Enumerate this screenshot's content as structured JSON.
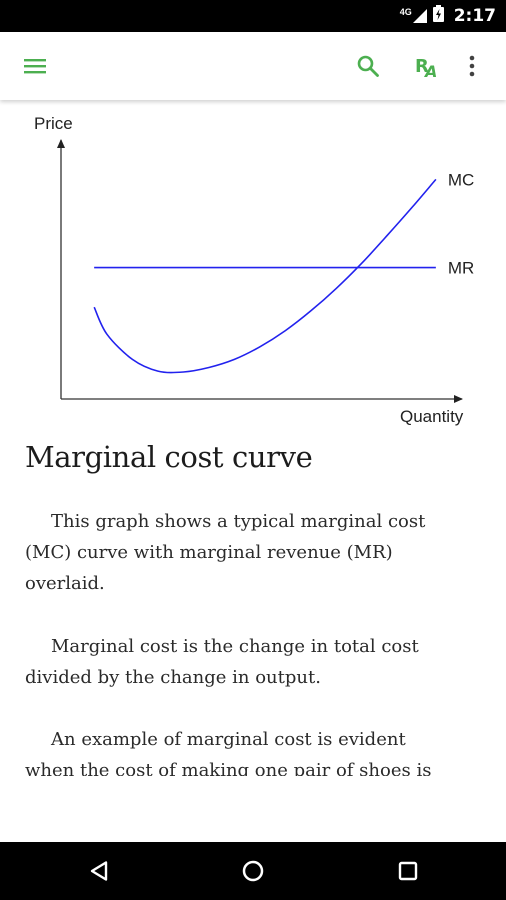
{
  "status_bar": {
    "network": "4G",
    "time": "2:17",
    "icons": [
      "signal-icon",
      "battery-icon"
    ]
  },
  "app_bar": {
    "icons": [
      "menu-icon",
      "search-icon",
      "font-size-icon",
      "more-vert-icon"
    ],
    "accent_color": "#4caf50"
  },
  "chart_data": {
    "type": "line",
    "xlabel": "Quantity",
    "ylabel": "Price",
    "grid": false,
    "series": [
      {
        "name": "MC",
        "color": "#2222ee",
        "x": [
          0.5,
          1,
          2,
          3,
          4,
          5,
          6,
          7,
          8,
          9,
          10,
          11,
          12,
          13,
          13.9
        ],
        "y": [
          5.1,
          3.6,
          2.2,
          1.55,
          1.5,
          1.75,
          2.2,
          2.9,
          3.8,
          4.9,
          6.15,
          7.55,
          9.1,
          10.7,
          12.2
        ]
      },
      {
        "name": "MR",
        "color": "#2222ee",
        "x": [
          0.5,
          13.9
        ],
        "y": [
          7.3,
          7.3
        ]
      }
    ],
    "xlim": [
      -0.8,
      15
    ],
    "ylim": [
      0,
      13.2
    ]
  },
  "article": {
    "title": "Marginal cost curve",
    "paragraphs": [
      "This graph shows a typical marginal cost (MC) curve with marginal revenue (MR) overlaid.",
      "Marginal cost is the change in total cost divided by the change in output.",
      "An example of marginal cost is evident when the cost of making one pair of shoes is"
    ]
  },
  "nav_bar": {
    "icons": [
      "back-icon",
      "home-icon",
      "recents-icon"
    ]
  }
}
